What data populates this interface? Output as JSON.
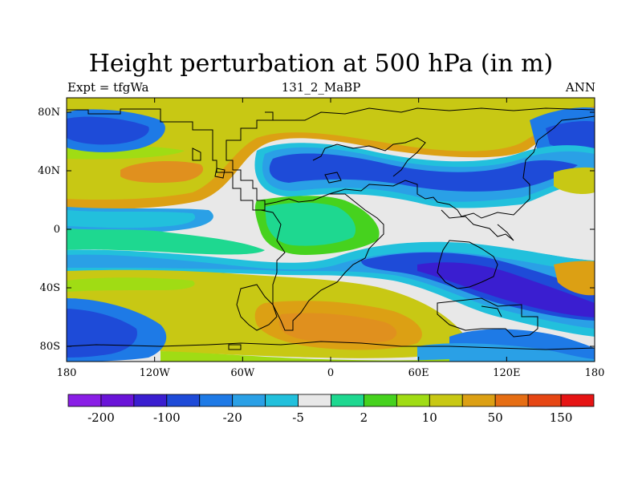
{
  "title": "Height perturbation at 500 hPa (in m)",
  "subtitle_left": "Expt = tfgWa",
  "subtitle_center": "131_2_MaBP",
  "subtitle_right": "ANN",
  "lat_ticks": [
    "80N",
    "40N",
    "0",
    "40S",
    "80S"
  ],
  "lon_ticks": [
    "180",
    "120W",
    "60W",
    "0",
    "60E",
    "120E",
    "180"
  ],
  "colorbar": {
    "colors": [
      "#8a1ee6",
      "#6a14d8",
      "#3a1ed0",
      "#1e4bd8",
      "#1e7ae6",
      "#2aa0e6",
      "#22c0dc",
      "#e8e8e8",
      "#1ed890",
      "#46d21e",
      "#a0dc14",
      "#c8c814",
      "#dca014",
      "#e66e14",
      "#e64614",
      "#e61414"
    ],
    "labels": [
      "-200",
      "-100",
      "-20",
      "-5",
      "2",
      "10",
      "50",
      "150"
    ]
  }
}
